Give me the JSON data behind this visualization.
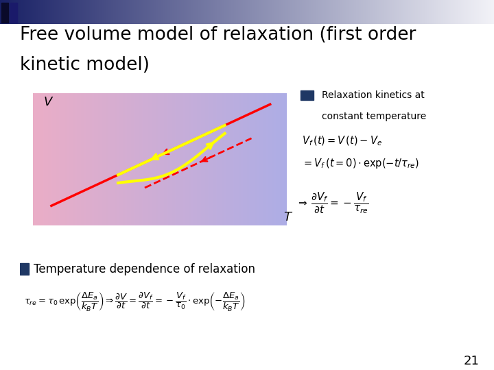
{
  "title_line1": "Free volume model of relaxation (first order",
  "title_line2": "kinetic model)",
  "title_fontsize": 19,
  "title_color": "#000000",
  "slide_bg": "#ffffff",
  "v_label": "V",
  "t_label": "T",
  "bullet_color": "#1f3864",
  "bullet1_text1": "Relaxation kinetics at",
  "bullet1_text2": "constant temperature",
  "formula1": "$V_f\\,(t)=V\\,(t)-V_e$",
  "formula2": "$=V_f\\,(t=0)\\cdot\\exp(-t/\\tau_{re})$",
  "formula3": "$\\Rightarrow\\,\\dfrac{\\partial V_f}{\\partial t}=-\\dfrac{V_f}{\\tau_{re}}$",
  "bullet2_text": "Temperature dependence of relaxation",
  "formula4": "$\\tau_{re}=\\tau_0\\,\\exp\\!\\left(\\dfrac{\\Delta E_a}{k_B T}\\right)\\Rightarrow\\dfrac{\\partial V}{\\partial t}=\\dfrac{\\partial V_f}{\\partial t}=-\\dfrac{V_f}{\\tau_0}\\cdot\\exp\\!\\left(-\\dfrac{\\Delta E_a}{k_B T}\\right)$",
  "page_number": "21"
}
